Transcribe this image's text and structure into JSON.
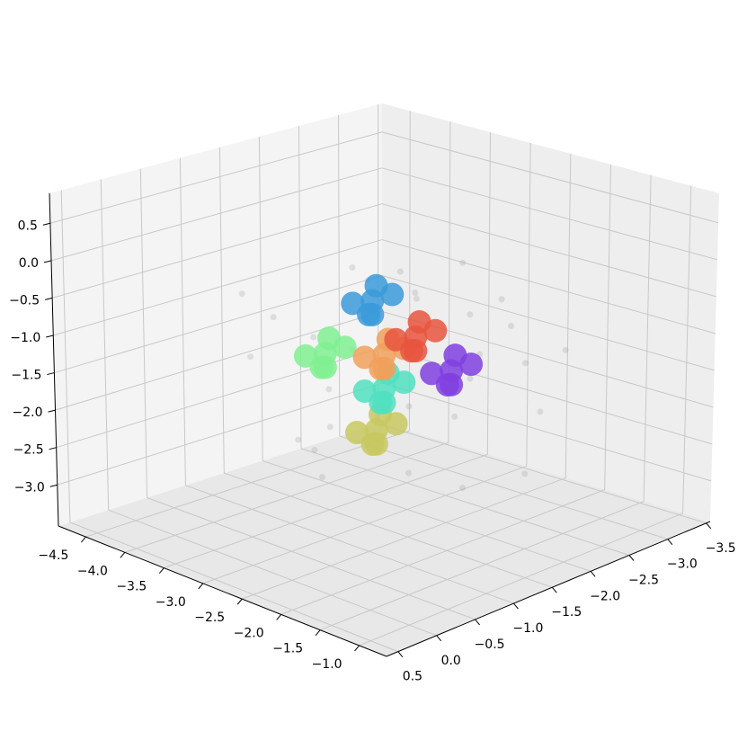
{
  "chart_data": {
    "type": "scatter3d",
    "xlim": [
      -4.85,
      -0.65
    ],
    "ylim": [
      -3.55,
      0.65
    ],
    "zlim": [
      -3.55,
      0.9
    ],
    "xticks": [
      {
        "value": -4.5,
        "label": "−4.5"
      },
      {
        "value": -4.0,
        "label": "−4.0"
      },
      {
        "value": -3.5,
        "label": "−3.5"
      },
      {
        "value": -3.0,
        "label": "−3.0"
      },
      {
        "value": -2.5,
        "label": "−2.5"
      },
      {
        "value": -2.0,
        "label": "−2.0"
      },
      {
        "value": -1.5,
        "label": "−1.5"
      },
      {
        "value": -1.0,
        "label": "−1.0"
      }
    ],
    "yticks": [
      0.5,
      {
        "value": 0,
        "label": "0.0"
      },
      {
        "value": -0.5,
        "label": "−0.5"
      },
      {
        "value": -1.0,
        "label": "−1.0"
      },
      {
        "value": -1.5,
        "label": "−1.5"
      },
      {
        "value": -2.0,
        "label": "−2.0"
      },
      {
        "value": -2.5,
        "label": "−2.5"
      },
      {
        "value": -3.0,
        "label": "−3.0"
      },
      {
        "value": -3.5,
        "label": "−3.5"
      }
    ],
    "zticks": [
      0.5,
      {
        "value": 0,
        "label": "0.0"
      },
      {
        "value": -0.5,
        "label": "−0.5"
      },
      {
        "value": -1.0,
        "label": "−1.0"
      },
      {
        "value": -1.5,
        "label": "−1.5"
      },
      {
        "value": -2.0,
        "label": "−2.0"
      },
      {
        "value": -2.5,
        "label": "−2.5"
      },
      {
        "value": -3.0,
        "label": "−3.0"
      }
    ],
    "grid": true,
    "series": [
      {
        "color": "#999999",
        "opacity": 0.25,
        "x": [
          -3.9,
          -3.5,
          -3.2,
          -2.1,
          -1.8,
          -1.6,
          -2.4,
          -3.0,
          -3.6,
          -2.0,
          -1.5,
          -2.7,
          -3.3,
          -2.2,
          -1.9,
          -3.8,
          -2.5,
          -1.7,
          -3.1,
          -2.9,
          -2.3,
          -3.4,
          -1.4,
          -2.6,
          -3.7,
          -2.0,
          -2.8,
          -3.2,
          -1.6,
          -2.4
        ],
        "y": [
          -1.2,
          -0.4,
          -2.3,
          -2.6,
          -0.8,
          -1.9,
          -0.2,
          -2.8,
          -1.6,
          -1.1,
          -2.5,
          -0.6,
          -1.8,
          -2.9,
          -0.5,
          -2.1,
          -1.4,
          -2.2,
          -0.9,
          -2.6,
          -0.3,
          -1.0,
          -1.3,
          -2.4,
          -0.7,
          -1.7,
          -3.0,
          -1.5,
          -0.6,
          -2.0
        ],
        "z": [
          -1.0,
          -0.3,
          -0.8,
          -1.5,
          -2.2,
          -0.6,
          -1.9,
          -1.2,
          -2.0,
          -0.1,
          -1.1,
          -2.5,
          -0.5,
          -2.3,
          -1.4,
          -1.7,
          0.0,
          -2.7,
          -0.9,
          -0.4,
          -1.6,
          -2.4,
          -0.7,
          -1.8,
          -1.3,
          -2.8,
          -1.0,
          -0.2,
          -1.2,
          -2.1
        ]
      },
      {
        "color": "#80f090",
        "opacity": 0.85,
        "x": [
          -3.15,
          -3.0,
          -3.3,
          -3.05,
          -3.25,
          -3.1
        ],
        "y": [
          -1.1,
          -1.2,
          -1.0,
          -0.95,
          -1.25,
          -1.05
        ],
        "z": [
          -1.2,
          -1.1,
          -1.25,
          -1.3,
          -1.08,
          -1.35
        ]
      },
      {
        "color": "#c8c860",
        "opacity": 0.85,
        "x": [
          -2.8,
          -2.65,
          -2.95,
          -2.7,
          -2.9,
          -2.75
        ],
        "y": [
          -1.4,
          -1.5,
          -1.3,
          -1.25,
          -1.55,
          -1.35
        ],
        "z": [
          -2.2,
          -2.1,
          -2.25,
          -2.3,
          -2.08,
          -2.35
        ]
      },
      {
        "color": "#50e0c0",
        "opacity": 0.85,
        "x": [
          -2.75,
          -2.6,
          -2.9,
          -2.65,
          -2.85,
          -2.7
        ],
        "y": [
          -1.45,
          -1.55,
          -1.35,
          -1.3,
          -1.6,
          -1.4
        ],
        "z": [
          -1.65,
          -1.55,
          -1.7,
          -1.75,
          -1.53,
          -1.8
        ]
      },
      {
        "color": "#f0a05a",
        "opacity": 0.85,
        "x": [
          -2.75,
          -2.6,
          -2.9,
          -2.65,
          -2.85,
          -2.7
        ],
        "y": [
          -1.45,
          -1.55,
          -1.35,
          -1.3,
          -1.6,
          -1.4
        ],
        "z": [
          -1.2,
          -1.1,
          -1.25,
          -1.3,
          -1.08,
          -1.35
        ]
      },
      {
        "color": "#e8553e",
        "opacity": 0.85,
        "x": [
          -2.75,
          -2.6,
          -2.9,
          -2.65,
          -2.85,
          -2.7
        ],
        "y": [
          -1.85,
          -1.95,
          -1.75,
          -1.7,
          -2.0,
          -1.8
        ],
        "z": [
          -1.1,
          -1.0,
          -1.15,
          -1.2,
          -0.98,
          -1.25
        ]
      },
      {
        "color": "#3a9ad9",
        "opacity": 0.85,
        "x": [
          -2.85,
          -2.7,
          -3.0,
          -2.75,
          -2.95,
          -2.8
        ],
        "y": [
          -1.4,
          -1.5,
          -1.3,
          -1.25,
          -1.55,
          -1.35
        ],
        "z": [
          -0.5,
          -0.4,
          -0.55,
          -0.6,
          -0.38,
          -0.65
        ]
      },
      {
        "color": "#8040e0",
        "opacity": 0.85,
        "x": [
          -2.15,
          -2.0,
          -2.3,
          -2.05,
          -2.25,
          -2.1
        ],
        "y": [
          -1.7,
          -1.8,
          -1.6,
          -1.55,
          -1.85,
          -1.65
        ],
        "z": [
          -1.3,
          -1.2,
          -1.35,
          -1.4,
          -1.18,
          -1.45
        ]
      }
    ]
  }
}
